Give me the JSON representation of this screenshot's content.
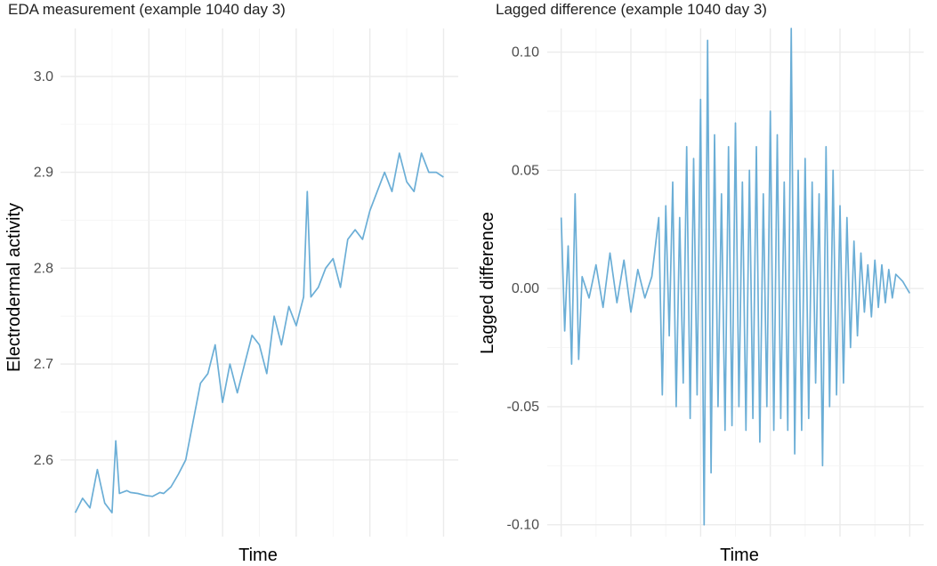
{
  "colors": {
    "series": "#6baed6",
    "grid": "#ebebeb"
  },
  "chart_data": [
    {
      "type": "line",
      "title": "EDA measurement (example 1040 day 3)",
      "xlabel": "Time",
      "ylabel": "Electrodermal activity",
      "ylim": [
        2.52,
        3.05
      ],
      "yticks": [
        2.6,
        2.7,
        2.8,
        2.9,
        3.0
      ],
      "ytick_labels": [
        "2.6",
        "2.7",
        "2.8",
        "2.9",
        "3.0"
      ],
      "x_tick_labels_shown": false,
      "x": [
        0,
        2,
        4,
        6,
        8,
        10,
        11,
        12,
        14,
        15,
        17,
        19,
        21,
        23,
        24,
        26,
        28,
        30,
        32,
        34,
        36,
        38,
        40,
        42,
        44,
        46,
        48,
        50,
        52,
        54,
        56,
        58,
        60,
        62,
        63,
        64,
        66,
        68,
        70,
        72,
        74,
        76,
        78,
        80,
        82,
        84,
        86,
        88,
        90,
        92,
        94,
        96,
        98,
        100
      ],
      "y": [
        2.545,
        2.56,
        2.55,
        2.59,
        2.555,
        2.545,
        2.62,
        2.565,
        2.568,
        2.566,
        2.565,
        2.563,
        2.562,
        2.566,
        2.565,
        2.572,
        2.585,
        2.6,
        2.64,
        2.68,
        2.69,
        2.72,
        2.66,
        2.7,
        2.67,
        2.7,
        2.73,
        2.72,
        2.69,
        2.75,
        2.72,
        2.76,
        2.74,
        2.77,
        2.88,
        2.77,
        2.78,
        2.8,
        2.81,
        2.78,
        2.83,
        2.84,
        2.83,
        2.86,
        2.88,
        2.9,
        2.88,
        2.92,
        2.89,
        2.88,
        2.92,
        2.9,
        2.9,
        2.895
      ]
    },
    {
      "type": "line",
      "title": "Lagged difference (example 1040 day 3)",
      "xlabel": "Time",
      "ylabel": "Lagged difference",
      "ylim": [
        -0.105,
        0.11
      ],
      "yticks": [
        -0.1,
        -0.05,
        0.0,
        0.05,
        0.1
      ],
      "ytick_labels": [
        "-0.10",
        "-0.05",
        "0.00",
        "0.05",
        "0.10"
      ],
      "x_tick_labels_shown": false,
      "x": [
        0,
        1,
        2,
        3,
        4,
        5,
        6,
        8,
        10,
        12,
        14,
        16,
        18,
        20,
        22,
        24,
        26,
        28,
        29,
        30,
        31,
        32,
        33,
        34,
        35,
        36,
        37,
        38,
        39,
        40,
        41,
        42,
        43,
        44,
        45,
        46,
        47,
        48,
        49,
        50,
        51,
        52,
        53,
        54,
        55,
        56,
        57,
        58,
        59,
        60,
        61,
        62,
        63,
        64,
        65,
        66,
        67,
        68,
        69,
        70,
        71,
        72,
        73,
        74,
        75,
        76,
        77,
        78,
        79,
        80,
        81,
        82,
        83,
        84,
        85,
        86,
        87,
        88,
        89,
        90,
        91,
        92,
        93,
        94,
        95,
        96,
        98,
        100
      ],
      "y": [
        0.03,
        -0.018,
        0.018,
        -0.032,
        0.04,
        -0.03,
        0.005,
        -0.004,
        0.01,
        -0.008,
        0.015,
        -0.006,
        0.012,
        -0.01,
        0.008,
        -0.004,
        0.005,
        0.03,
        -0.045,
        0.035,
        -0.02,
        0.045,
        -0.05,
        0.03,
        -0.04,
        0.06,
        -0.055,
        0.055,
        -0.045,
        0.08,
        -0.1,
        0.105,
        -0.078,
        0.065,
        -0.05,
        0.04,
        -0.06,
        0.06,
        -0.058,
        0.07,
        -0.05,
        0.045,
        -0.06,
        0.05,
        -0.055,
        0.06,
        -0.065,
        0.04,
        -0.05,
        0.075,
        -0.06,
        0.065,
        -0.055,
        0.045,
        -0.06,
        0.11,
        -0.07,
        0.05,
        -0.06,
        0.055,
        -0.055,
        0.045,
        -0.04,
        0.04,
        -0.075,
        0.06,
        -0.05,
        0.05,
        -0.045,
        0.035,
        -0.04,
        0.03,
        -0.025,
        0.02,
        -0.02,
        0.015,
        -0.01,
        0.01,
        -0.012,
        0.012,
        -0.008,
        0.01,
        -0.006,
        0.008,
        -0.004,
        0.006,
        0.003,
        -0.002
      ]
    }
  ]
}
